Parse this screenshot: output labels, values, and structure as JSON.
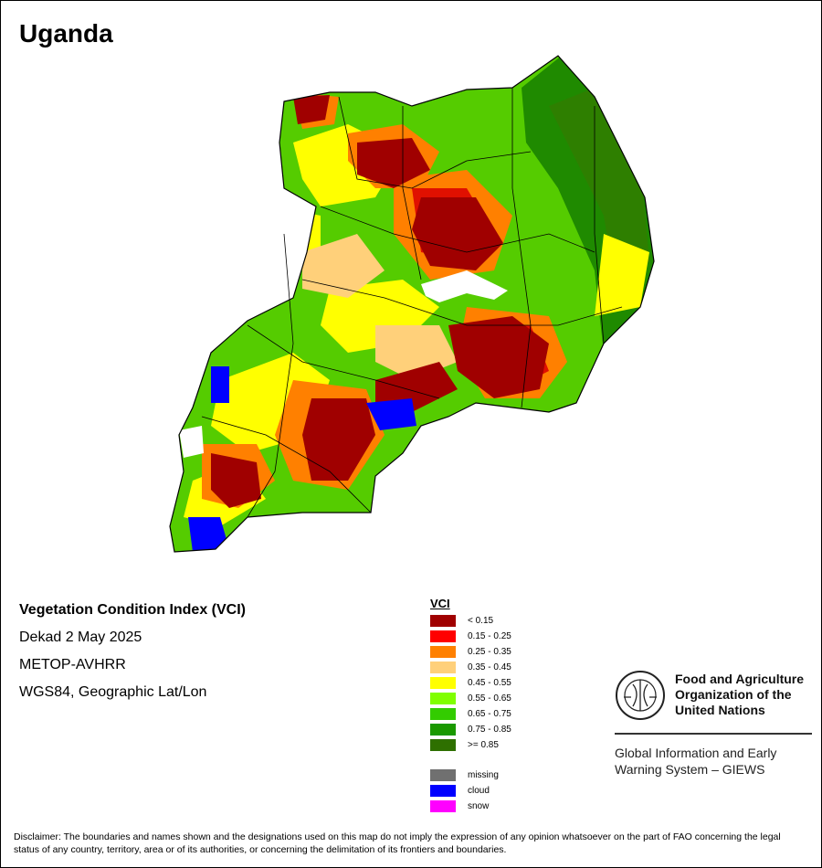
{
  "title": "Uganda",
  "info": {
    "index": "Vegetation Condition Index (VCI)",
    "period": "Dekad 2 May 2025",
    "sensor": "METOP-AVHRR",
    "projection": "WGS84, Geographic Lat/Lon"
  },
  "legend": {
    "title": "VCI",
    "classes": [
      {
        "label": "< 0.15",
        "color": "#a00000"
      },
      {
        "label": "0.15 - 0.25",
        "color": "#ff0000"
      },
      {
        "label": "0.25 - 0.35",
        "color": "#ff8000"
      },
      {
        "label": "0.35 - 0.45",
        "color": "#ffd07a"
      },
      {
        "label": "0.45 - 0.55",
        "color": "#ffff00"
      },
      {
        "label": "0.55 - 0.65",
        "color": "#80ff00"
      },
      {
        "label": "0.65 - 0.75",
        "color": "#33cc00"
      },
      {
        "label": "0.75 - 0.85",
        "color": "#1a9900"
      },
      {
        "label": ">= 0.85",
        "color": "#2e7000"
      }
    ],
    "other": [
      {
        "label": "missing",
        "color": "#707070"
      },
      {
        "label": "cloud",
        "color": "#0000ff"
      },
      {
        "label": "snow",
        "color": "#ff00ff"
      }
    ]
  },
  "branding": {
    "org_name": "Food and Agriculture Organization of the United Nations",
    "system_name": "Global Information and Early Warning System – GIEWS"
  },
  "disclaimer": "Disclaimer: The boundaries and names shown and the designations used on this map do not imply the expression of any opinion whatsoever on the part of FAO concerning the legal status of any country, territory, area or of its authorities, or concerning the delimitation of its frontiers and boundaries."
}
